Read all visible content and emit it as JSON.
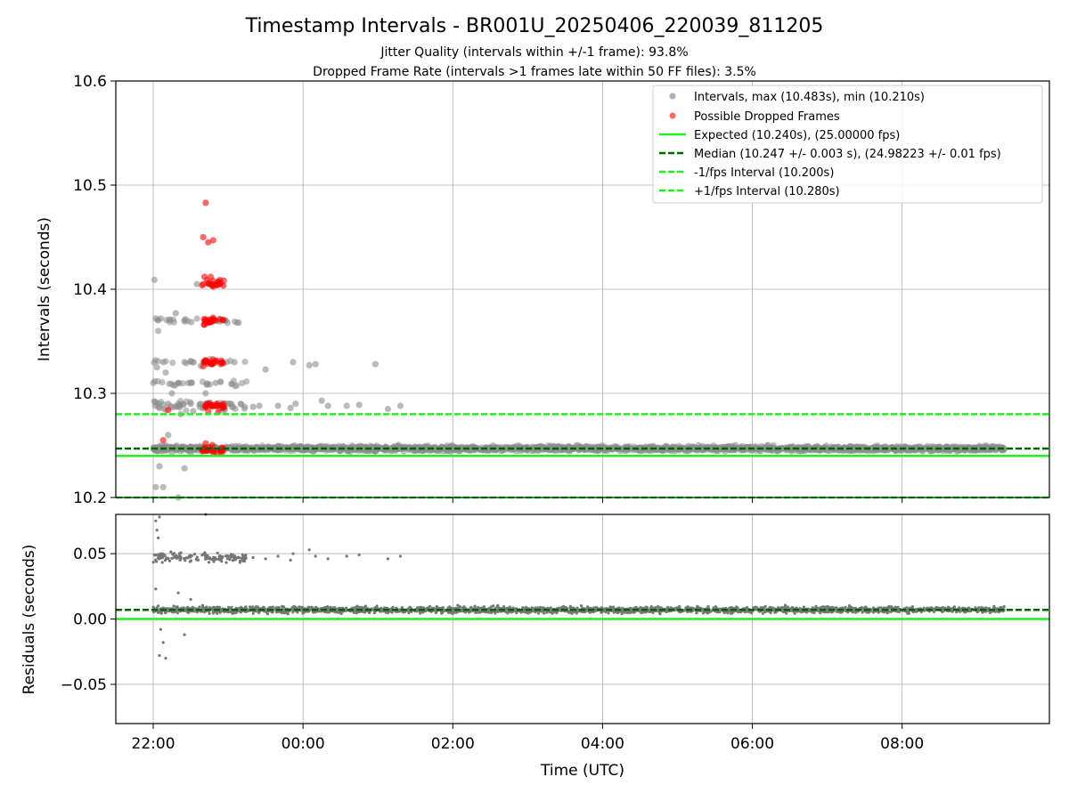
{
  "chart_data": {
    "title": "Timestamp Intervals - BR001U_20250406_220039_811205",
    "subtitle_lines": [
      "Jitter Quality (intervals within +/-1 frame): 93.8%",
      "Dropped Frame Rate (intervals >1 frames late within 50 FF files): 3.5%"
    ],
    "xlabel": "Time (UTC)",
    "x_axis": {
      "type": "time",
      "range": [
        "21:30",
        "09:58"
      ],
      "ticks": [
        "22:00",
        "00:00",
        "02:00",
        "04:00",
        "06:00",
        "08:00"
      ]
    },
    "grid": true,
    "legend": {
      "placement": "top-right"
    },
    "panels": [
      {
        "id": "intervals",
        "type": "scatter",
        "ylabel": "Intervals (seconds)",
        "ylim": [
          10.2,
          10.6
        ],
        "yticks": [
          "10.2",
          "10.3",
          "10.4",
          "10.5",
          "10.6"
        ],
        "series": [
          {
            "name": "Intervals, max (10.483s), min (10.210s)",
            "kind": "scatter",
            "color": "#8c8c8c",
            "description_points": [
              [
                "22:01",
                10.409
              ],
              [
                "22:02",
                10.372
              ],
              [
                "22:04",
                10.36
              ],
              [
                "22:06",
                10.372
              ],
              [
                "22:08",
                10.33
              ],
              [
                "22:03",
                10.325
              ],
              [
                "22:10",
                10.32
              ],
              [
                "22:12",
                10.29
              ],
              [
                "22:05",
                10.286
              ],
              [
                "22:15",
                10.3
              ],
              [
                "22:18",
                10.377
              ],
              [
                "22:20",
                10.29
              ],
              [
                "22:22",
                10.28
              ],
              [
                "22:25",
                10.33
              ],
              [
                "22:28",
                10.31
              ],
              [
                "22:30",
                10.29
              ],
              [
                "22:32",
                10.283
              ],
              [
                "22:35",
                10.405
              ],
              [
                "22:38",
                10.29
              ],
              [
                "22:40",
                10.33
              ],
              [
                "22:42",
                10.3
              ],
              [
                "22:45",
                10.29
              ],
              [
                "22:48",
                10.33
              ],
              [
                "22:50",
                10.31
              ],
              [
                "22:55",
                10.33
              ],
              [
                "22:58",
                10.37
              ],
              [
                "23:00",
                10.29
              ],
              [
                "23:05",
                10.33
              ],
              [
                "23:10",
                10.29
              ],
              [
                "23:20",
                10.287
              ],
              [
                "23:25",
                10.288
              ],
              [
                "23:30",
                10.323
              ],
              [
                "23:40",
                10.288
              ],
              [
                "23:50",
                10.286
              ],
              [
                "23:52",
                10.33
              ],
              [
                "23:54",
                10.29
              ],
              [
                "00:05",
                10.327
              ],
              [
                "00:10",
                10.328
              ],
              [
                "00:15",
                10.293
              ],
              [
                "00:20",
                10.288
              ],
              [
                "00:35",
                10.288
              ],
              [
                "00:45",
                10.289
              ],
              [
                "00:58",
                10.328
              ],
              [
                "01:08",
                10.285
              ],
              [
                "01:18",
                10.288
              ],
              [
                "22:02",
                10.21
              ],
              [
                "22:05",
                10.23
              ],
              [
                "22:08",
                10.21
              ],
              [
                "22:12",
                10.26
              ],
              [
                "22:20",
                10.2
              ],
              [
                "22:25",
                10.228
              ],
              [
                "22:04",
                10.245
              ],
              [
                "22:10",
                10.25
              ],
              [
                "22:15",
                10.243
              ],
              [
                "22:30",
                10.242
              ]
            ],
            "band": {
              "center": 10.247,
              "spread": 0.004,
              "from": "22:00",
              "to": "09:22"
            }
          },
          {
            "name": "Possible Dropped Frames",
            "kind": "scatter",
            "color": "#ff0000",
            "points": [
              [
                "22:42",
                10.483
              ],
              [
                "22:40",
                10.45
              ],
              [
                "22:44",
                10.445
              ],
              [
                "22:48",
                10.447
              ],
              [
                "22:41",
                10.412
              ],
              [
                "22:43",
                10.409
              ],
              [
                "22:46",
                10.412
              ],
              [
                "22:52",
                10.407
              ],
              [
                "22:40",
                10.405
              ],
              [
                "22:44",
                10.37
              ],
              [
                "22:48",
                10.37
              ],
              [
                "22:41",
                10.366
              ],
              [
                "22:45",
                10.368
              ],
              [
                "22:50",
                10.37
              ],
              [
                "22:42",
                10.33
              ],
              [
                "22:46",
                10.329
              ],
              [
                "22:50",
                10.331
              ],
              [
                "22:54",
                10.328
              ],
              [
                "22:40",
                10.326
              ],
              [
                "22:43",
                10.29
              ],
              [
                "22:47",
                10.288
              ],
              [
                "22:51",
                10.29
              ],
              [
                "22:55",
                10.286
              ],
              [
                "22:44",
                10.283
              ],
              [
                "22:52",
                10.282
              ],
              [
                "22:12",
                10.284
              ],
              [
                "22:08",
                10.255
              ],
              [
                "22:45",
                10.248
              ],
              [
                "22:48",
                10.245
              ],
              [
                "22:51",
                10.243
              ],
              [
                "22:54",
                10.246
              ],
              [
                "22:42",
                10.252
              ],
              [
                "22:56",
                10.247
              ]
            ]
          },
          {
            "name": "Expected (10.240s), (25.00000 fps)",
            "kind": "hline",
            "y": 10.24,
            "color": "#22ee22",
            "style": "solid"
          },
          {
            "name": "Median (10.247 +/- 0.003 s), (24.98223 +/- 0.01 fps)",
            "kind": "hline",
            "y": 10.247,
            "color": "#006400",
            "style": "dashed"
          },
          {
            "name": "-1/fps Interval (10.200s)",
            "kind": "hline",
            "y": 10.2,
            "color": "#22ee22",
            "style": "dashed"
          },
          {
            "name": "+1/fps Interval (10.280s)",
            "kind": "hline",
            "y": 10.28,
            "color": "#22ee22",
            "style": "dashed"
          }
        ]
      },
      {
        "id": "residuals",
        "type": "scatter",
        "ylabel": "Residuals (seconds)",
        "ylim": [
          -0.08,
          0.08
        ],
        "yticks": [
          "−0.05",
          "0.00",
          "0.05"
        ],
        "yticks_values": [
          -0.05,
          0.0,
          0.05
        ],
        "series": [
          {
            "kind": "scatter",
            "color": "#777777",
            "points": [
              [
                "22:02",
                0.075
              ],
              [
                "22:05",
                0.078
              ],
              [
                "22:03",
                0.068
              ],
              [
                "22:04",
                0.062
              ],
              [
                "22:06",
                0.05
              ],
              [
                "22:02",
                0.023
              ],
              [
                "22:04",
                0.01
              ],
              [
                "22:06",
                -0.008
              ],
              [
                "22:05",
                -0.028
              ],
              [
                "22:10",
                -0.03
              ],
              [
                "22:08",
                -0.018
              ],
              [
                "22:25",
                -0.012
              ],
              [
                "22:20",
                0.02
              ],
              [
                "22:30",
                0.015
              ],
              [
                "22:42",
                0.08
              ],
              [
                "23:20",
                0.047
              ],
              [
                "23:30",
                0.046
              ],
              [
                "23:40",
                0.048
              ],
              [
                "23:50",
                0.045
              ],
              [
                "23:52",
                0.05
              ],
              [
                "00:05",
                0.053
              ],
              [
                "00:10",
                0.048
              ],
              [
                "00:20",
                0.046
              ],
              [
                "00:35",
                0.048
              ],
              [
                "00:45",
                0.049
              ],
              [
                "01:08",
                0.046
              ],
              [
                "01:18",
                0.048
              ]
            ],
            "clusters": [
              {
                "from": "22:00",
                "to": "23:15",
                "center": 0.047,
                "spread": 0.006
              },
              {
                "from": "22:00",
                "to": "09:22",
                "center": 0.007,
                "spread": 0.004
              }
            ]
          },
          {
            "kind": "hline",
            "y": 0.0,
            "color": "#22ee22",
            "style": "solid"
          },
          {
            "kind": "hline",
            "y": 0.007,
            "color": "#006400",
            "style": "dashed"
          }
        ]
      }
    ]
  }
}
